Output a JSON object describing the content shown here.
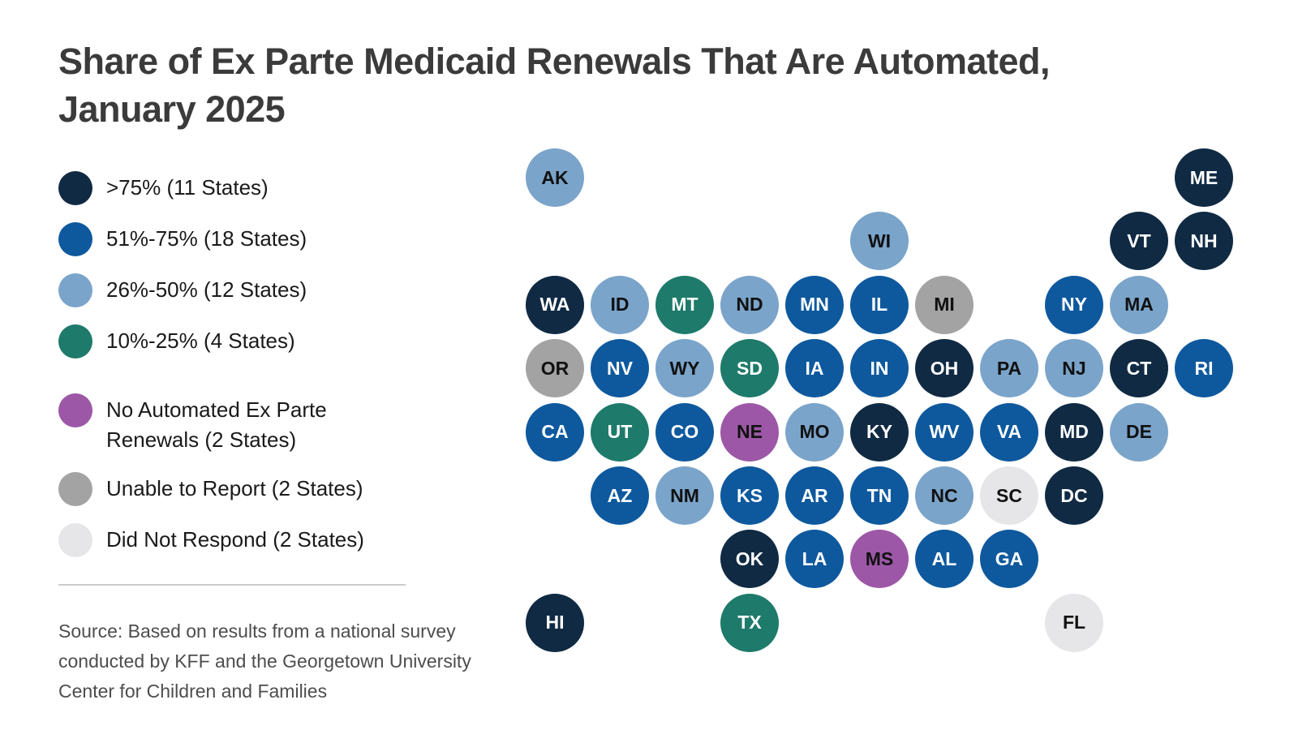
{
  "title": {
    "line1": "Share of Ex Parte Medicaid Renewals That Are Automated,",
    "line2": "January 2025"
  },
  "source_note": "Source: Based on results from a national survey conducted by KFF and the Georgetown University Center for Children and Families",
  "colors": {
    "gt75": {
      "fill": "#102a43",
      "text": "#ffffff"
    },
    "51to75": {
      "fill": "#0e599e",
      "text": "#ffffff"
    },
    "26to50": {
      "fill": "#7aa4ca",
      "text": "#111111"
    },
    "10to25": {
      "fill": "#1e7a6a",
      "text": "#ffffff"
    },
    "no_automated": {
      "fill": "#9c58a6",
      "text": "#111111"
    },
    "unable": {
      "fill": "#a3a3a3",
      "text": "#111111"
    },
    "no_response": {
      "fill": "#e6e6e8",
      "text": "#111111"
    }
  },
  "legend": {
    "items": [
      {
        "category": "gt75",
        "label": ">75% (11 States)"
      },
      {
        "category": "51to75",
        "label": "51%-75% (18 States)"
      },
      {
        "category": "26to50",
        "label": "26%-50% (12 States)"
      },
      {
        "category": "10to25",
        "label": "10%-25% (4 States)"
      },
      {
        "category": "no_automated",
        "label": "No Automated Ex Parte\nRenewals (2 States)"
      },
      {
        "category": "unable",
        "label": "Unable to Report (2 States)"
      },
      {
        "category": "no_response",
        "label": "Did Not Respond (2 States)"
      }
    ]
  },
  "chart_data": {
    "type": "tile-map",
    "title": "Share of Ex Parte Medicaid Renewals That Are Automated, January 2025",
    "categories": [
      {
        "id": "gt75",
        "label": ">75%",
        "states_count": 11
      },
      {
        "id": "51to75",
        "label": "51%-75%",
        "states_count": 18
      },
      {
        "id": "26to50",
        "label": "26%-50%",
        "states_count": 12
      },
      {
        "id": "10to25",
        "label": "10%-25%",
        "states_count": 4
      },
      {
        "id": "no_automated",
        "label": "No Automated Ex Parte Renewals",
        "states_count": 2
      },
      {
        "id": "unable",
        "label": "Unable to Report",
        "states_count": 2
      },
      {
        "id": "no_response",
        "label": "Did Not Respond",
        "states_count": 2
      }
    ],
    "states": [
      {
        "abbr": "AK",
        "col": 1,
        "row": 1,
        "category": "26to50"
      },
      {
        "abbr": "ME",
        "col": 11,
        "row": 1,
        "category": "gt75"
      },
      {
        "abbr": "WI",
        "col": 6,
        "row": 2,
        "category": "26to50"
      },
      {
        "abbr": "VT",
        "col": 10,
        "row": 2,
        "category": "gt75"
      },
      {
        "abbr": "NH",
        "col": 11,
        "row": 2,
        "category": "gt75"
      },
      {
        "abbr": "WA",
        "col": 1,
        "row": 3,
        "category": "gt75"
      },
      {
        "abbr": "ID",
        "col": 2,
        "row": 3,
        "category": "26to50"
      },
      {
        "abbr": "MT",
        "col": 3,
        "row": 3,
        "category": "10to25"
      },
      {
        "abbr": "ND",
        "col": 4,
        "row": 3,
        "category": "26to50"
      },
      {
        "abbr": "MN",
        "col": 5,
        "row": 3,
        "category": "51to75"
      },
      {
        "abbr": "IL",
        "col": 6,
        "row": 3,
        "category": "51to75"
      },
      {
        "abbr": "MI",
        "col": 7,
        "row": 3,
        "category": "unable"
      },
      {
        "abbr": "NY",
        "col": 9,
        "row": 3,
        "category": "51to75"
      },
      {
        "abbr": "MA",
        "col": 10,
        "row": 3,
        "category": "26to50"
      },
      {
        "abbr": "OR",
        "col": 1,
        "row": 4,
        "category": "unable"
      },
      {
        "abbr": "NV",
        "col": 2,
        "row": 4,
        "category": "51to75"
      },
      {
        "abbr": "WY",
        "col": 3,
        "row": 4,
        "category": "26to50"
      },
      {
        "abbr": "SD",
        "col": 4,
        "row": 4,
        "category": "10to25"
      },
      {
        "abbr": "IA",
        "col": 5,
        "row": 4,
        "category": "51to75"
      },
      {
        "abbr": "IN",
        "col": 6,
        "row": 4,
        "category": "51to75"
      },
      {
        "abbr": "OH",
        "col": 7,
        "row": 4,
        "category": "gt75"
      },
      {
        "abbr": "PA",
        "col": 8,
        "row": 4,
        "category": "26to50"
      },
      {
        "abbr": "NJ",
        "col": 9,
        "row": 4,
        "category": "26to50"
      },
      {
        "abbr": "CT",
        "col": 10,
        "row": 4,
        "category": "gt75"
      },
      {
        "abbr": "RI",
        "col": 11,
        "row": 4,
        "category": "51to75"
      },
      {
        "abbr": "CA",
        "col": 1,
        "row": 5,
        "category": "51to75"
      },
      {
        "abbr": "UT",
        "col": 2,
        "row": 5,
        "category": "10to25"
      },
      {
        "abbr": "CO",
        "col": 3,
        "row": 5,
        "category": "51to75"
      },
      {
        "abbr": "NE",
        "col": 4,
        "row": 5,
        "category": "no_automated"
      },
      {
        "abbr": "MO",
        "col": 5,
        "row": 5,
        "category": "26to50"
      },
      {
        "abbr": "KY",
        "col": 6,
        "row": 5,
        "category": "gt75"
      },
      {
        "abbr": "WV",
        "col": 7,
        "row": 5,
        "category": "51to75"
      },
      {
        "abbr": "VA",
        "col": 8,
        "row": 5,
        "category": "51to75"
      },
      {
        "abbr": "MD",
        "col": 9,
        "row": 5,
        "category": "gt75"
      },
      {
        "abbr": "DE",
        "col": 10,
        "row": 5,
        "category": "26to50"
      },
      {
        "abbr": "AZ",
        "col": 2,
        "row": 6,
        "category": "51to75"
      },
      {
        "abbr": "NM",
        "col": 3,
        "row": 6,
        "category": "26to50"
      },
      {
        "abbr": "KS",
        "col": 4,
        "row": 6,
        "category": "51to75"
      },
      {
        "abbr": "AR",
        "col": 5,
        "row": 6,
        "category": "51to75"
      },
      {
        "abbr": "TN",
        "col": 6,
        "row": 6,
        "category": "51to75"
      },
      {
        "abbr": "NC",
        "col": 7,
        "row": 6,
        "category": "26to50"
      },
      {
        "abbr": "SC",
        "col": 8,
        "row": 6,
        "category": "no_response"
      },
      {
        "abbr": "DC",
        "col": 9,
        "row": 6,
        "category": "gt75"
      },
      {
        "abbr": "OK",
        "col": 4,
        "row": 7,
        "category": "gt75"
      },
      {
        "abbr": "LA",
        "col": 5,
        "row": 7,
        "category": "51to75"
      },
      {
        "abbr": "MS",
        "col": 6,
        "row": 7,
        "category": "no_automated"
      },
      {
        "abbr": "AL",
        "col": 7,
        "row": 7,
        "category": "51to75"
      },
      {
        "abbr": "GA",
        "col": 8,
        "row": 7,
        "category": "51to75"
      },
      {
        "abbr": "HI",
        "col": 1,
        "row": 8,
        "category": "gt75"
      },
      {
        "abbr": "TX",
        "col": 4,
        "row": 8,
        "category": "10to25"
      },
      {
        "abbr": "FL",
        "col": 9,
        "row": 8,
        "category": "no_response"
      }
    ],
    "layout_hints": {
      "columns": 11,
      "rows": 8,
      "legend_position": "left"
    }
  }
}
